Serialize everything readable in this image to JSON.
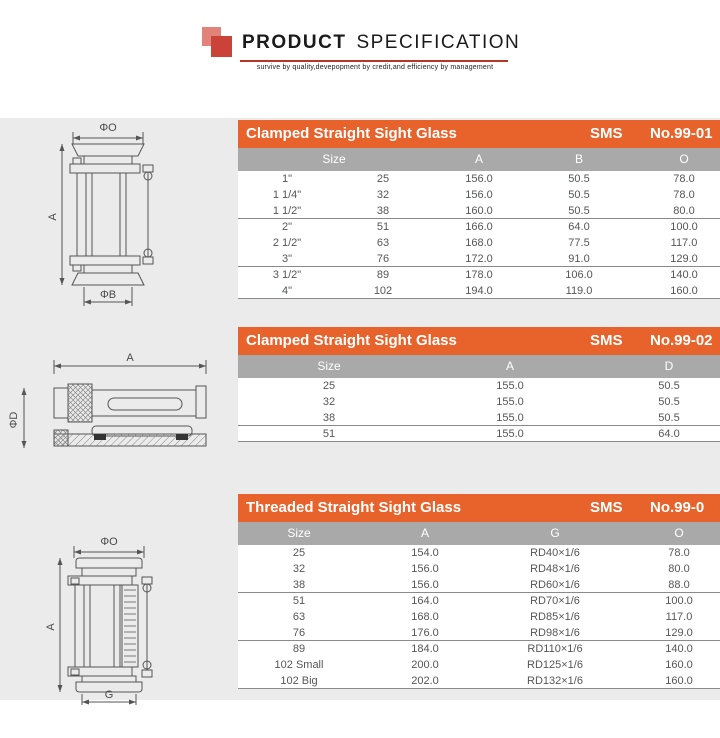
{
  "header": {
    "title_bold": "PRODUCT",
    "title_light": "SPECIFICATION",
    "tagline": "survive by quality,devepopment by credit,and efficiency by management",
    "logo_back_color": "#e2837b",
    "logo_front_color": "#cb4238",
    "underline_color": "#b93529"
  },
  "colors": {
    "accent_orange": "#e8632c",
    "column_header_gray": "#a9a9a9",
    "content_background": "#ebebeb",
    "body_text": "#555658"
  },
  "diagrams": [
    {
      "name": "clamped-sight-glass-front-view",
      "labels": {
        "top": "ΦO",
        "left": "A",
        "bottom": "ΦB"
      }
    },
    {
      "name": "sight-glass-section-view",
      "labels": {
        "top": "A",
        "left": "ΦD"
      }
    },
    {
      "name": "threaded-sight-glass-front-view",
      "labels": {
        "top": "ΦO",
        "left": "A",
        "bottom": "G"
      }
    }
  ],
  "tables": [
    {
      "title": "Clamped Straight Sight Glass",
      "standard": "SMS",
      "number": "No.99-01",
      "headers": [
        {
          "label": "Size",
          "span": 2
        },
        {
          "label": "A",
          "span": 1
        },
        {
          "label": "B",
          "span": 1
        },
        {
          "label": "O",
          "span": 1
        }
      ],
      "rows": [
        [
          "1\"",
          "25",
          "156.0",
          "50.5",
          "78.0"
        ],
        [
          "1 1/4\"",
          "32",
          "156.0",
          "50.5",
          "78.0"
        ],
        [
          "1 1/2\"",
          "38",
          "160.0",
          "50.5",
          "80.0"
        ],
        [
          "2\"",
          "51",
          "166.0",
          "64.0",
          "100.0"
        ],
        [
          "2 1/2\"",
          "63",
          "168.0",
          "77.5",
          "117.0"
        ],
        [
          "3\"",
          "76",
          "172.0",
          "91.0",
          "129.0"
        ],
        [
          "3 1/2\"",
          "89",
          "178.0",
          "106.0",
          "140.0"
        ],
        [
          "4\"",
          "102",
          "194.0",
          "119.0",
          "160.0"
        ]
      ],
      "group_ends": [
        2,
        5,
        7
      ]
    },
    {
      "title": "Clamped Straight Sight Glass",
      "standard": "SMS",
      "number": "No.99-02",
      "headers": [
        {
          "label": "Size",
          "span": 1
        },
        {
          "label": "A",
          "span": 1
        },
        {
          "label": "D",
          "span": 1
        }
      ],
      "rows": [
        [
          "25",
          "155.0",
          "50.5"
        ],
        [
          "32",
          "155.0",
          "50.5"
        ],
        [
          "38",
          "155.0",
          "50.5"
        ],
        [
          "51",
          "155.0",
          "64.0"
        ]
      ],
      "group_ends": [
        2,
        3
      ]
    },
    {
      "title": "Threaded Straight Sight Glass",
      "standard": "SMS",
      "number": "No.99-0",
      "headers": [
        {
          "label": "Size",
          "span": 1
        },
        {
          "label": "A",
          "span": 1
        },
        {
          "label": "G",
          "span": 1
        },
        {
          "label": "O",
          "span": 1
        }
      ],
      "rows": [
        [
          "25",
          "154.0",
          "RD40×1/6",
          "78.0"
        ],
        [
          "32",
          "156.0",
          "RD48×1/6",
          "80.0"
        ],
        [
          "38",
          "156.0",
          "RD60×1/6",
          "88.0"
        ],
        [
          "51",
          "164.0",
          "RD70×1/6",
          "100.0"
        ],
        [
          "63",
          "168.0",
          "RD85×1/6",
          "117.0"
        ],
        [
          "76",
          "176.0",
          "RD98×1/6",
          "129.0"
        ],
        [
          "89",
          "184.0",
          "RD110×1/6",
          "140.0"
        ],
        [
          "102 Small",
          "200.0",
          "RD125×1/6",
          "160.0"
        ],
        [
          "102 Big",
          "202.0",
          "RD132×1/6",
          "160.0"
        ]
      ],
      "group_ends": [
        2,
        5,
        8
      ]
    }
  ]
}
